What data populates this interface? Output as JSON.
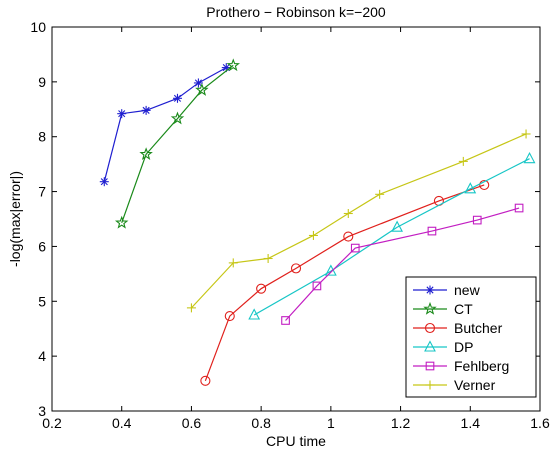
{
  "chart_data": {
    "type": "line",
    "title": "Prothero − Robinson k=−200",
    "xlabel": "CPU time",
    "ylabel": "-log(max|error|)",
    "xlim": [
      0.2,
      1.6
    ],
    "ylim": [
      3,
      10
    ],
    "xticks": [
      0.2,
      0.4,
      0.6,
      0.8,
      1.0,
      1.2,
      1.4,
      1.6
    ],
    "xtick_labels": [
      "0.2",
      "0.4",
      "0.6",
      "0.8",
      "1",
      "1.2",
      "1.4",
      "1.6"
    ],
    "yticks": [
      3,
      4,
      5,
      6,
      7,
      8,
      9,
      10
    ],
    "ytick_labels": [
      "3",
      "4",
      "5",
      "6",
      "7",
      "8",
      "9",
      "10"
    ],
    "grid": false,
    "legend_position": "bottom-right",
    "series": [
      {
        "name": "new",
        "color": "#1f1fd0",
        "marker": "asterisk",
        "x": [
          0.35,
          0.4,
          0.47,
          0.56,
          0.62,
          0.7
        ],
        "y": [
          7.18,
          8.42,
          8.48,
          8.7,
          8.98,
          9.26
        ]
      },
      {
        "name": "CT",
        "color": "#1a8a1a",
        "marker": "star",
        "x": [
          0.4,
          0.47,
          0.56,
          0.63,
          0.72
        ],
        "y": [
          6.43,
          7.68,
          8.33,
          8.85,
          9.3
        ]
      },
      {
        "name": "Butcher",
        "color": "#e0201c",
        "marker": "circle",
        "x": [
          0.64,
          0.71,
          0.8,
          0.9,
          1.05,
          1.31,
          1.44
        ],
        "y": [
          3.55,
          4.73,
          5.23,
          5.6,
          6.18,
          6.83,
          7.12
        ]
      },
      {
        "name": "DP",
        "color": "#17c6c6",
        "marker": "triangle",
        "x": [
          0.78,
          1.0,
          1.19,
          1.4,
          1.57
        ],
        "y": [
          4.75,
          5.55,
          6.35,
          7.05,
          7.6
        ]
      },
      {
        "name": "Fehlberg",
        "color": "#c21ec2",
        "marker": "square",
        "x": [
          0.87,
          0.96,
          1.07,
          1.29,
          1.42,
          1.54
        ],
        "y": [
          4.65,
          5.28,
          5.97,
          6.28,
          6.48,
          6.7
        ]
      },
      {
        "name": "Verner",
        "color": "#c6c616",
        "marker": "plus",
        "x": [
          0.6,
          0.72,
          0.82,
          0.95,
          1.05,
          1.14,
          1.38,
          1.56
        ],
        "y": [
          4.88,
          5.7,
          5.78,
          6.2,
          6.6,
          6.95,
          7.55,
          8.05
        ]
      }
    ]
  }
}
